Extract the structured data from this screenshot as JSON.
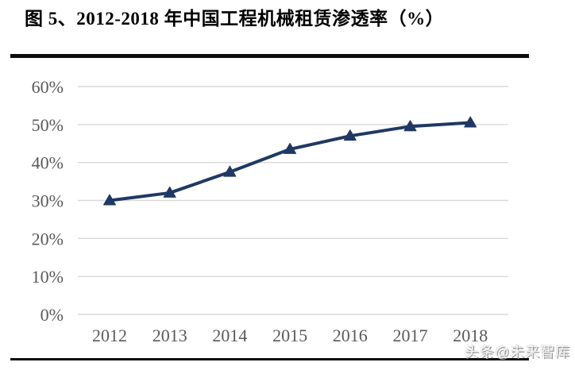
{
  "header": {
    "title": "图 5、2012-2018 年中国工程机械租赁渗透率（%）"
  },
  "footer": {
    "watermark": "头条@未来智库"
  },
  "colors": {
    "line": "#1f3864",
    "grid": "#d9d9d9",
    "axis_text": "#595959",
    "rule": "#0d0d0d"
  },
  "chart_data": {
    "type": "line",
    "title": "图 5、2012-2018 年中国工程机械租赁渗透率（%）",
    "categories": [
      "2012",
      "2013",
      "2014",
      "2015",
      "2016",
      "2017",
      "2018"
    ],
    "series": [
      {
        "name": "中国工程机械租赁渗透率",
        "values": [
          30,
          32,
          37.5,
          43.5,
          47,
          49.5,
          50.5
        ]
      }
    ],
    "ylim": [
      0,
      60
    ],
    "ytick_step": 10,
    "ytick_labels": [
      "0%",
      "10%",
      "20%",
      "30%",
      "40%",
      "50%",
      "60%"
    ],
    "xlabel": "",
    "ylabel": "",
    "grid": "horizontal",
    "legend": "none",
    "marker": "triangle"
  }
}
